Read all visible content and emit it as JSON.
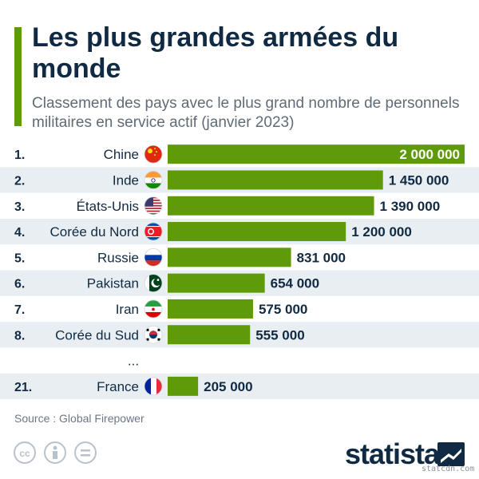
{
  "title": "Les plus grandes armées du monde",
  "subtitle": "Classement des pays avec le plus grand nombre de personnels militaires en service actif (janvier 2023)",
  "source": "Source : Global Firepower",
  "brand": "statista",
  "watermark": "statcdn.com",
  "ellipsis": "...",
  "colors": {
    "bar": "#5e9a0a",
    "stripe": "#e9eef3",
    "accent": "#5e9a0a",
    "text": "#102a43"
  },
  "chart_data": {
    "type": "bar",
    "orientation": "horizontal",
    "title": "Les plus grandes armées du monde",
    "xlim": [
      0,
      2000000
    ],
    "rows": [
      {
        "rank": "1.",
        "country": "Chine",
        "value": 2000000,
        "label": "2 000 000",
        "flag": "china-flag"
      },
      {
        "rank": "2.",
        "country": "Inde",
        "value": 1450000,
        "label": "1 450 000",
        "flag": "india-flag"
      },
      {
        "rank": "3.",
        "country": "États-Unis",
        "value": 1390000,
        "label": "1 390 000",
        "flag": "usa-flag"
      },
      {
        "rank": "4.",
        "country": "Corée du Nord",
        "value": 1200000,
        "label": "1 200 000",
        "flag": "north-korea-flag"
      },
      {
        "rank": "5.",
        "country": "Russie",
        "value": 831000,
        "label": "831 000",
        "flag": "russia-flag"
      },
      {
        "rank": "6.",
        "country": "Pakistan",
        "value": 654000,
        "label": "654 000",
        "flag": "pakistan-flag"
      },
      {
        "rank": "7.",
        "country": "Iran",
        "value": 575000,
        "label": "575 000",
        "flag": "iran-flag"
      },
      {
        "rank": "8.",
        "country": "Corée du Sud",
        "value": 555000,
        "label": "555 000",
        "flag": "south-korea-flag"
      },
      {
        "rank": "21.",
        "country": "France",
        "value": 205000,
        "label": "205 000",
        "flag": "france-flag"
      }
    ]
  }
}
